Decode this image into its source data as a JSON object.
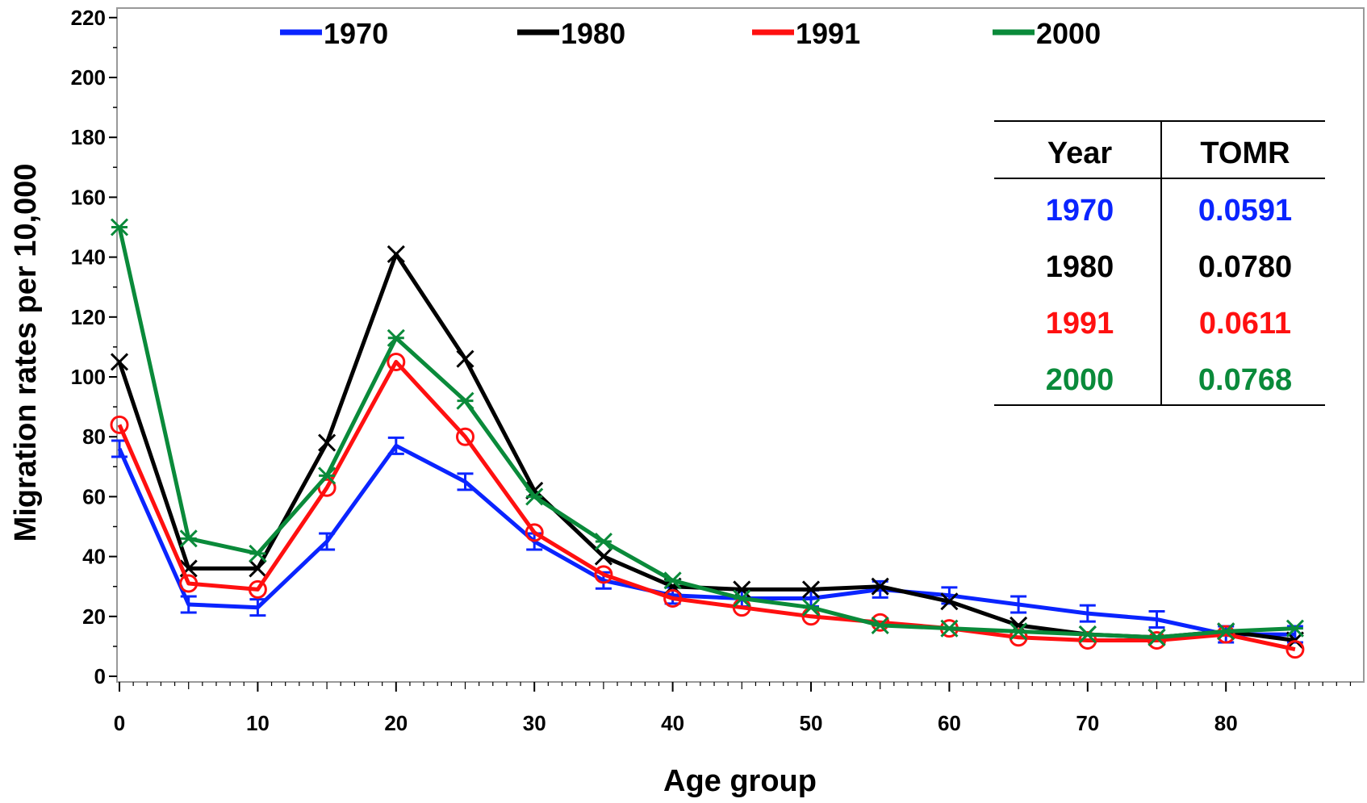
{
  "chart_data": {
    "type": "line",
    "title": "",
    "xlabel": "Age group",
    "ylabel": "Migration rates per 10,000",
    "xlim": [
      -1,
      90
    ],
    "ylim": [
      0,
      222
    ],
    "x_ticks": [
      0,
      10,
      20,
      30,
      40,
      50,
      60,
      70,
      80
    ],
    "y_ticks": [
      0,
      20,
      40,
      60,
      80,
      100,
      120,
      140,
      160,
      180,
      200,
      220
    ],
    "x": [
      0,
      5,
      10,
      15,
      20,
      25,
      30,
      35,
      40,
      45,
      50,
      55,
      60,
      65,
      70,
      75,
      80,
      85
    ],
    "legend_position": "top",
    "grid": false,
    "series": [
      {
        "name": "1970",
        "color": "#0a24ff",
        "marker": "I",
        "values": [
          76,
          24,
          23,
          45,
          77,
          65,
          45,
          32,
          27,
          26,
          26,
          29,
          27,
          24,
          21,
          19,
          14,
          14
        ]
      },
      {
        "name": "1980",
        "color": "#000000",
        "marker": "X",
        "values": [
          105,
          36,
          36,
          78,
          141,
          106,
          62,
          40,
          30,
          29,
          29,
          30,
          25,
          17,
          14,
          13,
          15,
          12
        ]
      },
      {
        "name": "1991",
        "color": "#ff1010",
        "marker": "O",
        "values": [
          84,
          31,
          29,
          63,
          105,
          80,
          48,
          34,
          26,
          23,
          20,
          18,
          16,
          13,
          12,
          12,
          14,
          9
        ]
      },
      {
        "name": "2000",
        "color": "#0a8a3a",
        "marker": "*",
        "values": [
          150,
          46,
          41,
          67,
          113,
          92,
          60,
          45,
          32,
          26,
          23,
          17,
          16,
          15,
          14,
          13,
          15,
          16
        ]
      }
    ],
    "inset_table": {
      "headers": [
        "Year",
        "TOMR"
      ],
      "rows": [
        {
          "year": "1970",
          "tomr": "0.0591",
          "color": "#0a24ff"
        },
        {
          "year": "1980",
          "tomr": "0.0780",
          "color": "#000000"
        },
        {
          "year": "1991",
          "tomr": "0.0611",
          "color": "#ff1010"
        },
        {
          "year": "2000",
          "tomr": "0.0768",
          "color": "#0a8a3a"
        }
      ]
    }
  }
}
